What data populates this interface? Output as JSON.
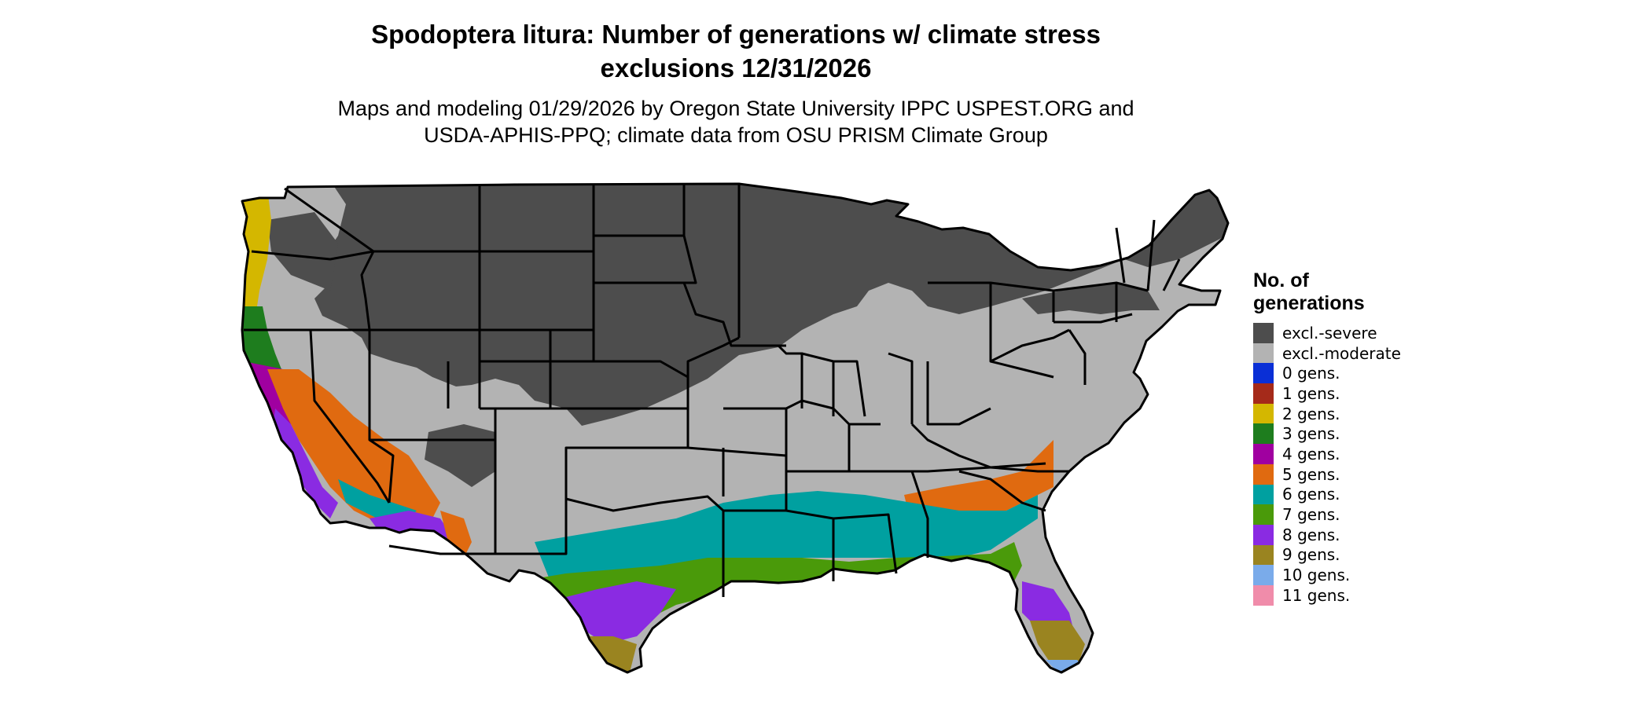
{
  "title_line1": "Spodoptera litura: Number of generations w/ climate stress",
  "title_line2": "exclusions 12/31/2026",
  "subtitle_line1": "Maps and modeling 01/29/2026 by Oregon State University IPPC USPEST.ORG and",
  "subtitle_line2": "USDA-APHIS-PPQ; climate data from OSU PRISM Climate Group",
  "legend": {
    "title_line1": "No. of",
    "title_line2": "generations",
    "items": [
      {
        "label": "excl.-severe",
        "color": "#4d4d4d"
      },
      {
        "label": "excl.-moderate",
        "color": "#b3b3b3"
      },
      {
        "label": "0 gens.",
        "color": "#0a2fd6"
      },
      {
        "label": "1 gens.",
        "color": "#a52a1a"
      },
      {
        "label": "2 gens.",
        "color": "#d4b700"
      },
      {
        "label": "3 gens.",
        "color": "#1e7d1e"
      },
      {
        "label": "4 gens.",
        "color": "#a000a0"
      },
      {
        "label": "5 gens.",
        "color": "#e06a10"
      },
      {
        "label": "6 gens.",
        "color": "#00a0a0"
      },
      {
        "label": "7 gens.",
        "color": "#4a9a0a"
      },
      {
        "label": "8 gens.",
        "color": "#8a2be2"
      },
      {
        "label": "9 gens.",
        "color": "#9a8420"
      },
      {
        "label": "10 gens.",
        "color": "#7aabea"
      },
      {
        "label": "11 gens.",
        "color": "#f08caa"
      }
    ]
  }
}
